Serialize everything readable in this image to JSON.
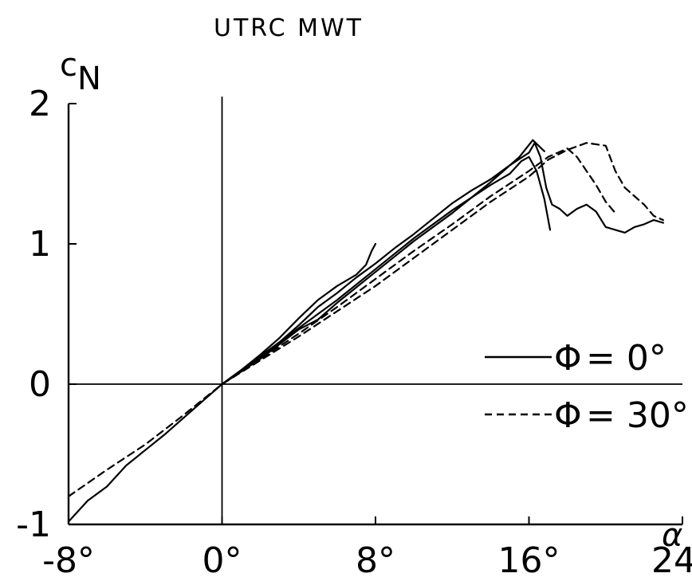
{
  "chart_data": {
    "type": "line",
    "title": "UTRC MWT",
    "xlabel": "α",
    "ylabel_main": "c",
    "ylabel_sub": "N",
    "xlim": [
      -8,
      24
    ],
    "ylim": [
      -1,
      2
    ],
    "xticks": [
      -8,
      0,
      8,
      16,
      24
    ],
    "xtick_labels": [
      "-8°",
      "0°",
      "8°",
      "16°",
      "24°"
    ],
    "yticks": [
      -1,
      0,
      1,
      2
    ],
    "ytick_labels": [
      "-1",
      "0",
      "1",
      "2"
    ],
    "grid": false,
    "legend_position": "right",
    "series": [
      {
        "name": "Φ = 0°",
        "style": "solid",
        "runs": [
          [
            [
              -8,
              -0.98
            ],
            [
              -7,
              -0.83
            ],
            [
              -6,
              -0.73
            ],
            [
              -5,
              -0.58
            ],
            [
              -4,
              -0.47
            ],
            [
              -3,
              -0.36
            ],
            [
              -2,
              -0.24
            ],
            [
              -1,
              -0.12
            ],
            [
              0,
              0.0
            ],
            [
              1,
              0.09
            ],
            [
              2,
              0.19
            ],
            [
              3,
              0.3
            ],
            [
              4,
              0.42
            ],
            [
              5,
              0.55
            ],
            [
              6,
              0.65
            ],
            [
              7,
              0.76
            ],
            [
              8,
              0.86
            ],
            [
              9,
              0.97
            ],
            [
              10,
              1.07
            ],
            [
              11,
              1.18
            ],
            [
              12,
              1.29
            ],
            [
              13,
              1.38
            ],
            [
              14,
              1.46
            ],
            [
              15,
              1.56
            ],
            [
              16,
              1.65
            ],
            [
              16.3,
              1.72
            ],
            [
              16.6,
              1.62
            ],
            [
              16.9,
              1.4
            ],
            [
              17.2,
              1.28
            ],
            [
              17.6,
              1.25
            ],
            [
              18,
              1.2
            ],
            [
              18.5,
              1.25
            ],
            [
              19,
              1.28
            ],
            [
              19.5,
              1.23
            ],
            [
              20,
              1.12
            ],
            [
              20.5,
              1.1
            ],
            [
              21,
              1.08
            ],
            [
              21.5,
              1.12
            ],
            [
              22,
              1.14
            ],
            [
              22.5,
              1.17
            ],
            [
              23,
              1.15
            ]
          ],
          [
            [
              0,
              0.0
            ],
            [
              1,
              0.1
            ],
            [
              2,
              0.21
            ],
            [
              3,
              0.33
            ],
            [
              4,
              0.47
            ],
            [
              5,
              0.6
            ],
            [
              6,
              0.7
            ],
            [
              7,
              0.78
            ],
            [
              7.5,
              0.85
            ],
            [
              7.8,
              0.95
            ],
            [
              8,
              1.0
            ]
          ],
          [
            [
              0,
              0.0
            ],
            [
              2,
              0.2
            ],
            [
              4,
              0.4
            ],
            [
              6,
              0.6
            ],
            [
              8,
              0.82
            ],
            [
              10,
              1.04
            ],
            [
              12,
              1.24
            ],
            [
              14,
              1.42
            ],
            [
              15,
              1.5
            ],
            [
              15.6,
              1.59
            ],
            [
              16,
              1.62
            ],
            [
              16.4,
              1.52
            ],
            [
              16.8,
              1.32
            ],
            [
              17.1,
              1.1
            ]
          ],
          [
            [
              0,
              0.0
            ],
            [
              2,
              0.18
            ],
            [
              4,
              0.39
            ],
            [
              5,
              0.46
            ],
            [
              6,
              0.58
            ],
            [
              8,
              0.8
            ],
            [
              10,
              1.02
            ],
            [
              12,
              1.22
            ],
            [
              14,
              1.44
            ],
            [
              15.5,
              1.62
            ],
            [
              16.2,
              1.74
            ],
            [
              16.8,
              1.66
            ]
          ]
        ]
      },
      {
        "name": "Φ = 30°",
        "style": "dashed",
        "runs": [
          [
            [
              -8,
              -0.8
            ],
            [
              -6,
              -0.61
            ],
            [
              -4,
              -0.43
            ],
            [
              -2,
              -0.22
            ],
            [
              0,
              0.0
            ],
            [
              2,
              0.17
            ],
            [
              4,
              0.34
            ],
            [
              6,
              0.52
            ],
            [
              8,
              0.7
            ],
            [
              10,
              0.9
            ],
            [
              12,
              1.1
            ],
            [
              14,
              1.3
            ],
            [
              16,
              1.48
            ],
            [
              17,
              1.6
            ],
            [
              18,
              1.67
            ],
            [
              19,
              1.72
            ],
            [
              20,
              1.7
            ],
            [
              20.5,
              1.52
            ],
            [
              21,
              1.4
            ],
            [
              22,
              1.28
            ],
            [
              22.5,
              1.2
            ],
            [
              23,
              1.17
            ]
          ],
          [
            [
              0,
              0.0
            ],
            [
              2,
              0.18
            ],
            [
              4,
              0.36
            ],
            [
              6,
              0.55
            ],
            [
              8,
              0.75
            ],
            [
              10,
              0.95
            ],
            [
              12,
              1.14
            ],
            [
              14,
              1.34
            ],
            [
              16,
              1.52
            ],
            [
              17,
              1.62
            ],
            [
              18,
              1.68
            ],
            [
              18.5,
              1.62
            ],
            [
              19,
              1.52
            ],
            [
              19.5,
              1.42
            ],
            [
              20,
              1.3
            ],
            [
              20.5,
              1.22
            ]
          ]
        ]
      }
    ],
    "legend": [
      {
        "symbol": "Φ",
        "text": "= 0°",
        "style": "solid"
      },
      {
        "symbol": "Φ",
        "text": "= 30°",
        "style": "dashed"
      }
    ]
  }
}
